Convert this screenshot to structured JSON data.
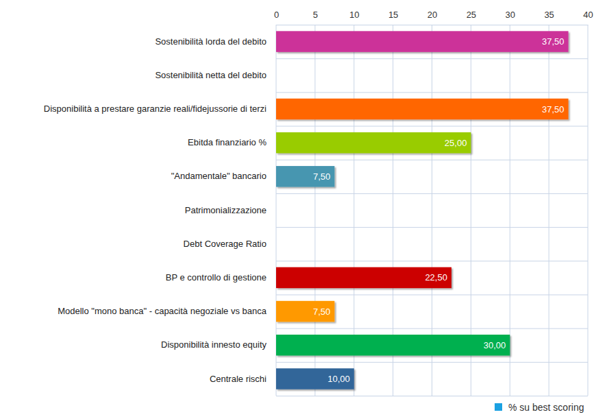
{
  "chart_data": {
    "type": "bar",
    "orientation": "horizontal",
    "categories": [
      "Sostenibilità lorda del debito",
      "Sostenibilità netta del debito",
      "Disponibilità a prestare garanzie reali/fidejussorie di terzi",
      "Ebitda finanziario %",
      "\"Andamentale\" bancario",
      "Patrimonializzazione",
      "Debt Coverage Ratio",
      "BP e controllo di gestione",
      "Modello \"mono banca\" - capacità negoziale vs banca",
      "Disponibilità innesto equity",
      "Centrale rischi"
    ],
    "series": [
      {
        "name": "% su best scoring",
        "color": "#1ba1e2",
        "values": [
          37.5,
          null,
          37.5,
          25,
          7.5,
          null,
          null,
          22.5,
          7.5,
          30,
          10
        ],
        "value_labels": [
          "37,50",
          null,
          "37,50",
          "25,00",
          "7,50",
          null,
          null,
          "22,50",
          "7,50",
          "30,00",
          "10,00"
        ],
        "colors": [
          "#cc3399",
          null,
          "#ff6600",
          "#99cc00",
          "#4796b0",
          null,
          null,
          "#cc0000",
          "#ff9900",
          "#00b050",
          "#336699"
        ]
      }
    ],
    "xlim": [
      0,
      40
    ],
    "xticks": [
      0,
      5,
      10,
      15,
      20,
      25,
      30,
      35,
      40
    ],
    "grid": true,
    "data_labels": true,
    "legend": "bottom-right"
  }
}
